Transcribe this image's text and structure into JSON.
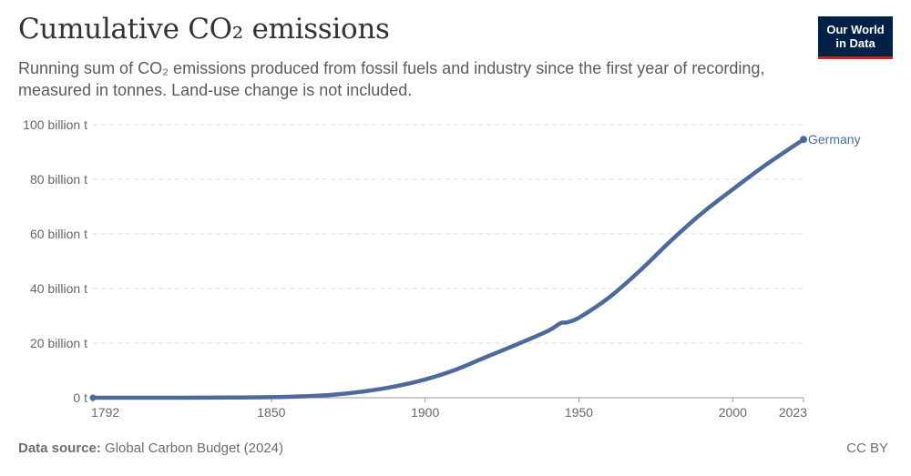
{
  "header": {
    "title": "Cumulative CO₂ emissions",
    "subtitle": "Running sum of CO₂ emissions produced from fossil fuels and industry since the first year of recording, measured in tonnes. Land-use change is not included."
  },
  "logo": {
    "line1": "Our World",
    "line2": "in Data"
  },
  "footer": {
    "source_label": "Data source:",
    "source_value": "Global Carbon Budget (2024)",
    "license": "CC BY"
  },
  "colors": {
    "series": "#4c6a9c",
    "grid": "#dddddd",
    "text": "#666666"
  },
  "chart_data": {
    "type": "line",
    "title": "Cumulative CO₂ emissions",
    "xlabel": "",
    "ylabel": "",
    "xlim": [
      1792,
      2023
    ],
    "ylim": [
      0,
      100
    ],
    "y_unit": "billion t",
    "x_ticks": [
      1792,
      1850,
      1900,
      1950,
      2000,
      2023
    ],
    "y_ticks": [
      {
        "value": 0,
        "label": "0 t"
      },
      {
        "value": 20,
        "label": "20 billion t"
      },
      {
        "value": 40,
        "label": "40 billion t"
      },
      {
        "value": 60,
        "label": "60 billion t"
      },
      {
        "value": 80,
        "label": "80 billion t"
      },
      {
        "value": 100,
        "label": "100 billion t"
      }
    ],
    "grid": "horizontal-dashed",
    "series": [
      {
        "name": "Germany",
        "x": [
          1792,
          1820,
          1840,
          1850,
          1860,
          1870,
          1880,
          1890,
          1900,
          1910,
          1920,
          1930,
          1940,
          1944,
          1946,
          1950,
          1960,
          1970,
          1980,
          1990,
          2000,
          2010,
          2023
        ],
        "values": [
          0,
          0,
          0.1,
          0.2,
          0.5,
          1.1,
          2.3,
          4.1,
          6.7,
          10.3,
          15,
          19.6,
          24.5,
          27.3,
          27.6,
          29.3,
          36.9,
          46.7,
          57.6,
          67.6,
          76.3,
          84.7,
          94.6
        ]
      }
    ]
  }
}
